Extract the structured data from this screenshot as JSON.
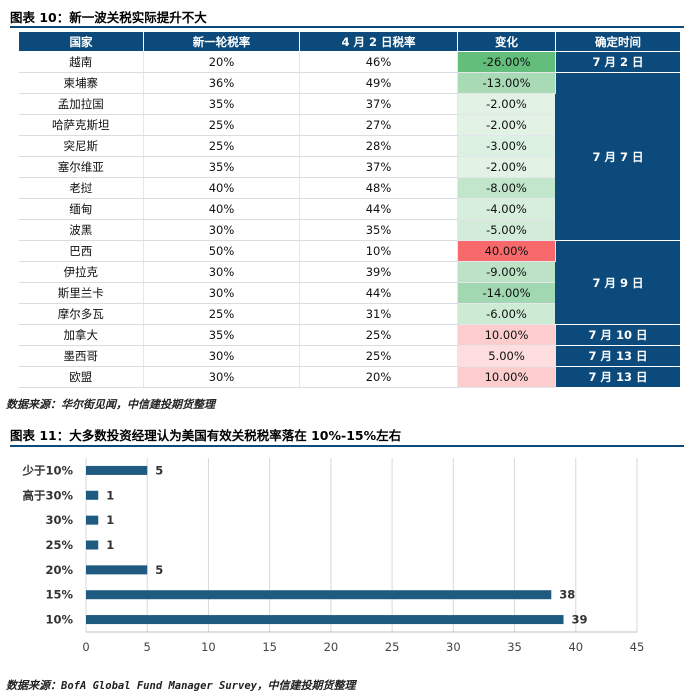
{
  "figure10": {
    "title": "图表 10：新一波关税实际提升不大",
    "columns": [
      "国家",
      "新一轮税率",
      "4 月 2 日税率",
      "变化",
      "确定时间"
    ],
    "rows": [
      {
        "country": "越南",
        "new_rate": "20%",
        "apr2_rate": "46%",
        "change": "-26.00%",
        "change_value": -26,
        "date": "7 月 2 日"
      },
      {
        "country": "柬埔寨",
        "new_rate": "36%",
        "apr2_rate": "49%",
        "change": "-13.00%",
        "change_value": -13,
        "date": "7 月 7 日"
      },
      {
        "country": "孟加拉国",
        "new_rate": "35%",
        "apr2_rate": "37%",
        "change": "-2.00%",
        "change_value": -2,
        "date": "7 月 7 日"
      },
      {
        "country": "哈萨克斯坦",
        "new_rate": "25%",
        "apr2_rate": "27%",
        "change": "-2.00%",
        "change_value": -2,
        "date": "7 月 7 日"
      },
      {
        "country": "突尼斯",
        "new_rate": "25%",
        "apr2_rate": "28%",
        "change": "-3.00%",
        "change_value": -3,
        "date": "7 月 7 日"
      },
      {
        "country": "塞尔维亚",
        "new_rate": "35%",
        "apr2_rate": "37%",
        "change": "-2.00%",
        "change_value": -2,
        "date": "7 月 7 日"
      },
      {
        "country": "老挝",
        "new_rate": "40%",
        "apr2_rate": "48%",
        "change": "-8.00%",
        "change_value": -8,
        "date": "7 月 7 日"
      },
      {
        "country": "缅甸",
        "new_rate": "40%",
        "apr2_rate": "44%",
        "change": "-4.00%",
        "change_value": -4,
        "date": "7 月 7 日"
      },
      {
        "country": "波黑",
        "new_rate": "30%",
        "apr2_rate": "35%",
        "change": "-5.00%",
        "change_value": -5,
        "date": "7 月 7 日"
      },
      {
        "country": "巴西",
        "new_rate": "50%",
        "apr2_rate": "10%",
        "change": "40.00%",
        "change_value": 40,
        "date": "7 月 9 日"
      },
      {
        "country": "伊拉克",
        "new_rate": "30%",
        "apr2_rate": "39%",
        "change": "-9.00%",
        "change_value": -9,
        "date": "7 月 9 日"
      },
      {
        "country": "斯里兰卡",
        "new_rate": "30%",
        "apr2_rate": "44%",
        "change": "-14.00%",
        "change_value": -14,
        "date": "7 月 9 日"
      },
      {
        "country": "摩尔多瓦",
        "new_rate": "25%",
        "apr2_rate": "31%",
        "change": "-6.00%",
        "change_value": -6,
        "date": "7 月 9 日"
      },
      {
        "country": "加拿大",
        "new_rate": "35%",
        "apr2_rate": "25%",
        "change": "10.00%",
        "change_value": 10,
        "date": "7 月 10 日"
      },
      {
        "country": "墨西哥",
        "new_rate": "30%",
        "apr2_rate": "25%",
        "change": "5.00%",
        "change_value": 5,
        "date": "7 月 13 日"
      },
      {
        "country": "欧盟",
        "new_rate": "30%",
        "apr2_rate": "20%",
        "change": "10.00%",
        "change_value": 10,
        "date": "7 月 13 日"
      }
    ],
    "date_groups": [
      {
        "label": "7 月 2 日",
        "start": 0,
        "span": 1
      },
      {
        "label": "7 月 7 日",
        "start": 1,
        "span": 8
      },
      {
        "label": "7 月 9 日",
        "start": 9,
        "span": 4
      },
      {
        "label": "7 月 10 日",
        "start": 13,
        "span": 1
      },
      {
        "label": "7 月 13 日",
        "start": 14,
        "span": 1
      },
      {
        "label": "7 月 13 日",
        "start": 15,
        "span": 1
      }
    ],
    "source": "数据来源：华尔街见闻，中信建投期货整理",
    "colors": {
      "header": "#0b4a7a",
      "negative": "#63be7b",
      "positive": "#f8696b"
    }
  },
  "figure11": {
    "title": "图表 11：大多数投资经理认为美国有效关税税率落在 10%-15%左右",
    "source_prefix": "数据来源：",
    "source_body": "BofA Global Fund Manager Survey，",
    "source_suffix": "中信建投期货整理"
  },
  "chart_data": {
    "type": "bar",
    "orientation": "horizontal",
    "categories": [
      "少于10%",
      "高于30%",
      "30%",
      "25%",
      "20%",
      "15%",
      "10%"
    ],
    "values": [
      5,
      1,
      1,
      1,
      5,
      38,
      39
    ],
    "xlim": [
      0,
      45
    ],
    "xticks": [
      0,
      5,
      10,
      15,
      20,
      25,
      30,
      35,
      40,
      45
    ],
    "grid": true,
    "legend": "none",
    "bar_color": "#1f5b80",
    "title": "",
    "xlabel": "",
    "ylabel": ""
  }
}
